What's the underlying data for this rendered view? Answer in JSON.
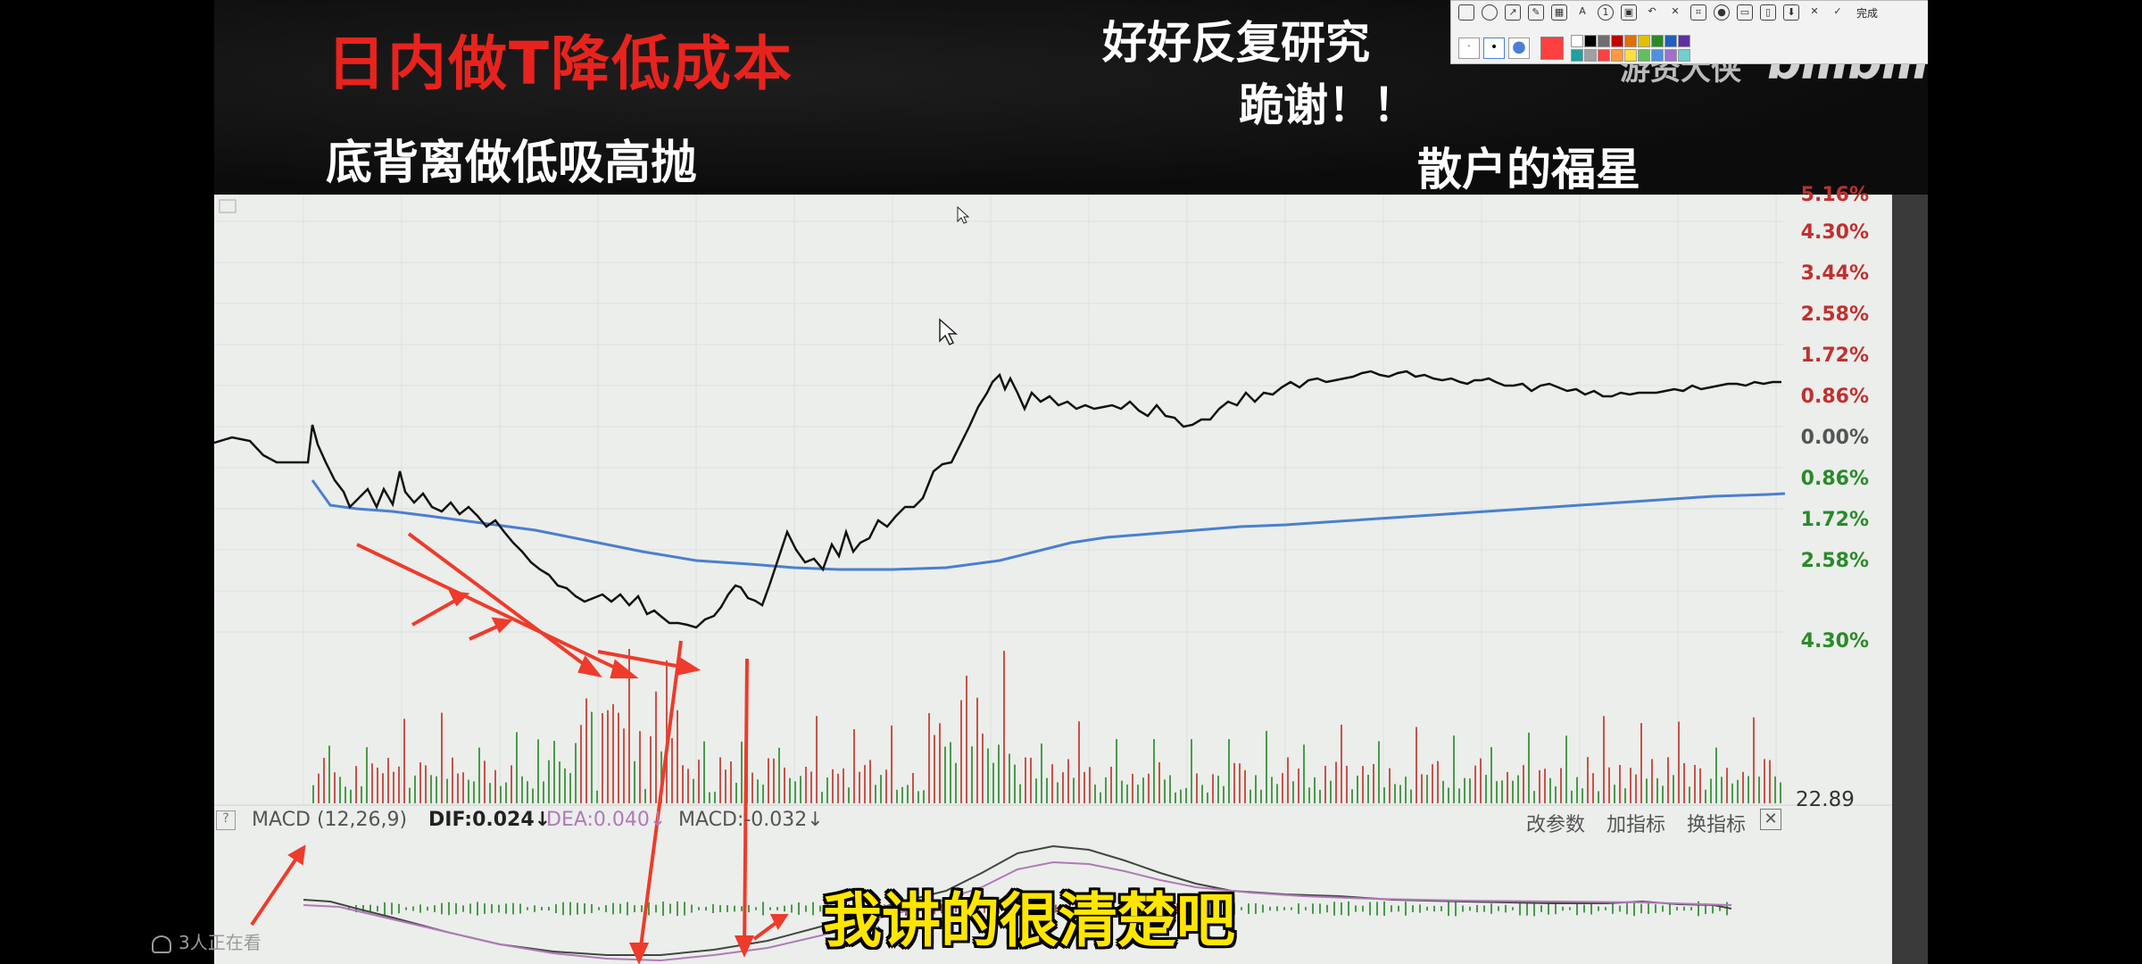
{
  "banner": {
    "title": "日内做T降低成本",
    "subtitle": "底背离做低吸高抛",
    "caption_1": "好好反复研究",
    "caption_2": "跪谢！！",
    "caption_3": "散户的福星",
    "brand_text": "游资大侠",
    "brand_logo": "bilibili"
  },
  "toolbar": {
    "done_label": "完成",
    "palette": [
      "#ffffff",
      "#000000",
      "#6e6e6e",
      "#c00000",
      "#e07000",
      "#e0c000",
      "#2a8a2a",
      "#2060c0",
      "#6030a0",
      "#20a0a0",
      "#a0a0a0",
      "#ff4040",
      "#ff9a40",
      "#ffe040",
      "#60c060",
      "#5090e0",
      "#a070d0",
      "#70d0d0"
    ]
  },
  "chart": {
    "axis_labels": [
      {
        "text": "5.16%",
        "color": "#c03030"
      },
      {
        "text": "4.30%",
        "color": "#c03030"
      },
      {
        "text": "3.44%",
        "color": "#c03030"
      },
      {
        "text": "2.58%",
        "color": "#c03030"
      },
      {
        "text": "1.72%",
        "color": "#c03030"
      },
      {
        "text": "0.86%",
        "color": "#c03030"
      },
      {
        "text": "0.00%",
        "color": "#555555"
      },
      {
        "text": "0.86%",
        "color": "#2a8a2a"
      },
      {
        "text": "1.72%",
        "color": "#2a8a2a"
      },
      {
        "text": "2.58%",
        "color": "#2a8a2a"
      },
      {
        "text": "4.30%",
        "color": "#2a8a2a"
      }
    ],
    "price_tag": "22.89"
  },
  "macd": {
    "help": "?",
    "name": "MACD (12,26,9)",
    "dif": "DIF:0.024↓",
    "dea": "DEA:0.040↓",
    "macd_value": "MACD:-0.032↓",
    "btn_params": "改参数",
    "btn_add": "加指标",
    "btn_switch": "换指标",
    "close": "✕"
  },
  "subtitle_bottom": "我讲的很清楚吧",
  "viewers": "3人正在看"
}
